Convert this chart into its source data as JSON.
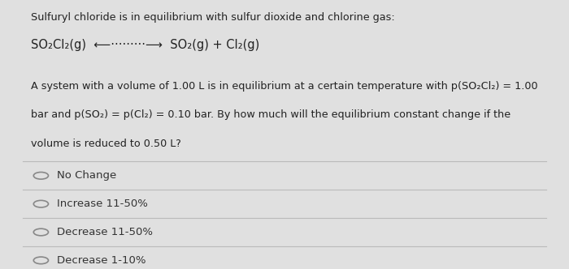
{
  "bg_color": "#e0e0e0",
  "card_color": "#f2f2f2",
  "title_line": "Sulfuryl chloride is in equilibrium with sulfur dioxide and chlorine gas:",
  "equation": "SO₂Cl₂(g)  ⟵·········⟶  SO₂(g) + Cl₂(g)",
  "body_text_line1": "A system with a volume of 1.00 L is in equilibrium at a certain temperature with p(SO₂Cl₂) = 1.00",
  "body_text_line2": "bar and p(SO₂) = p(Cl₂) = 0.10 bar. By how much will the equilibrium constant change if the",
  "body_text_line3": "volume is reduced to 0.50 L?",
  "options": [
    "No Change",
    "Increase 11-50%",
    "Decrease 11-50%",
    "Decrease 1-10%"
  ],
  "divider_color": "#bbbbbb",
  "text_color": "#222222",
  "option_text_color": "#333333",
  "circle_color": "#888888",
  "font_size_title": 9.2,
  "font_size_equation": 10.5,
  "font_size_body": 9.2,
  "font_size_option": 9.5
}
